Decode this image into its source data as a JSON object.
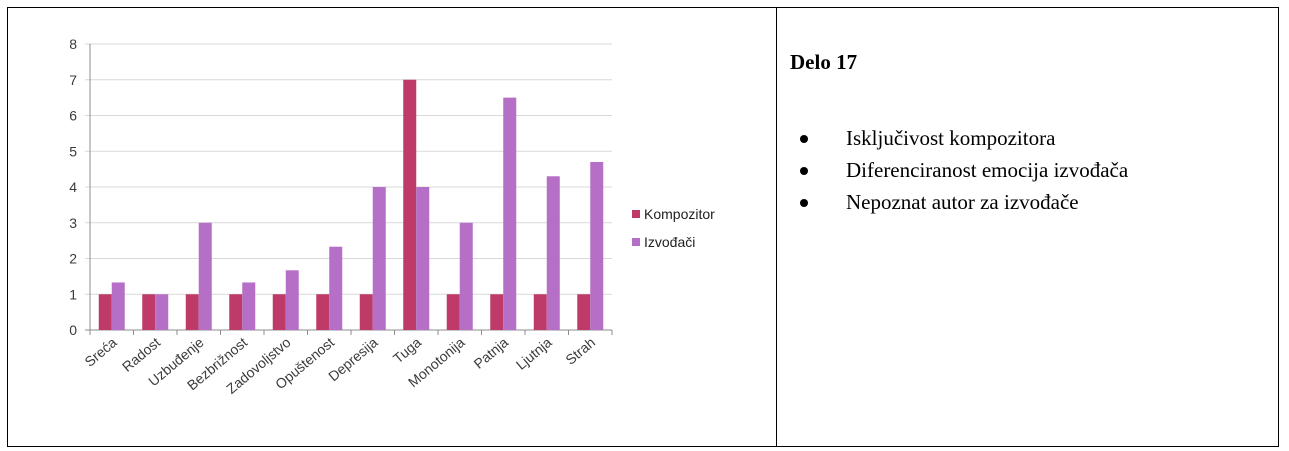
{
  "chart_data": {
    "type": "bar",
    "categories": [
      "Sreća",
      "Radost",
      "Uzbuđenje",
      "Bezbrižnost",
      "Zadovoljstvo",
      "Opuštenost",
      "Depresija",
      "Tuga",
      "Monotonija",
      "Patnja",
      "Ljutnja",
      "Strah"
    ],
    "series": [
      {
        "name": "Kompozitor",
        "color": "#be3a68",
        "values": [
          1,
          1,
          1,
          1,
          1,
          1,
          1,
          7,
          1,
          1,
          1,
          1
        ]
      },
      {
        "name": "Izvođači",
        "color": "#b56fc6",
        "values": [
          1.33,
          1,
          3,
          1.33,
          1.67,
          2.33,
          4,
          4,
          3,
          6.5,
          4.3,
          4.7
        ]
      }
    ],
    "yticks": [
      "0",
      "1",
      "2",
      "3",
      "4",
      "5",
      "6",
      "7",
      "8"
    ],
    "ylim": [
      0,
      8
    ],
    "grid": true,
    "legend": "right",
    "title": "",
    "xlabel": "",
    "ylabel": ""
  },
  "panel": {
    "heading": "Delo 17",
    "bullets": [
      "Isključivost kompozitora",
      "Diferenciranost emocija izvođača",
      "Nepoznat autor za izvođače"
    ]
  }
}
